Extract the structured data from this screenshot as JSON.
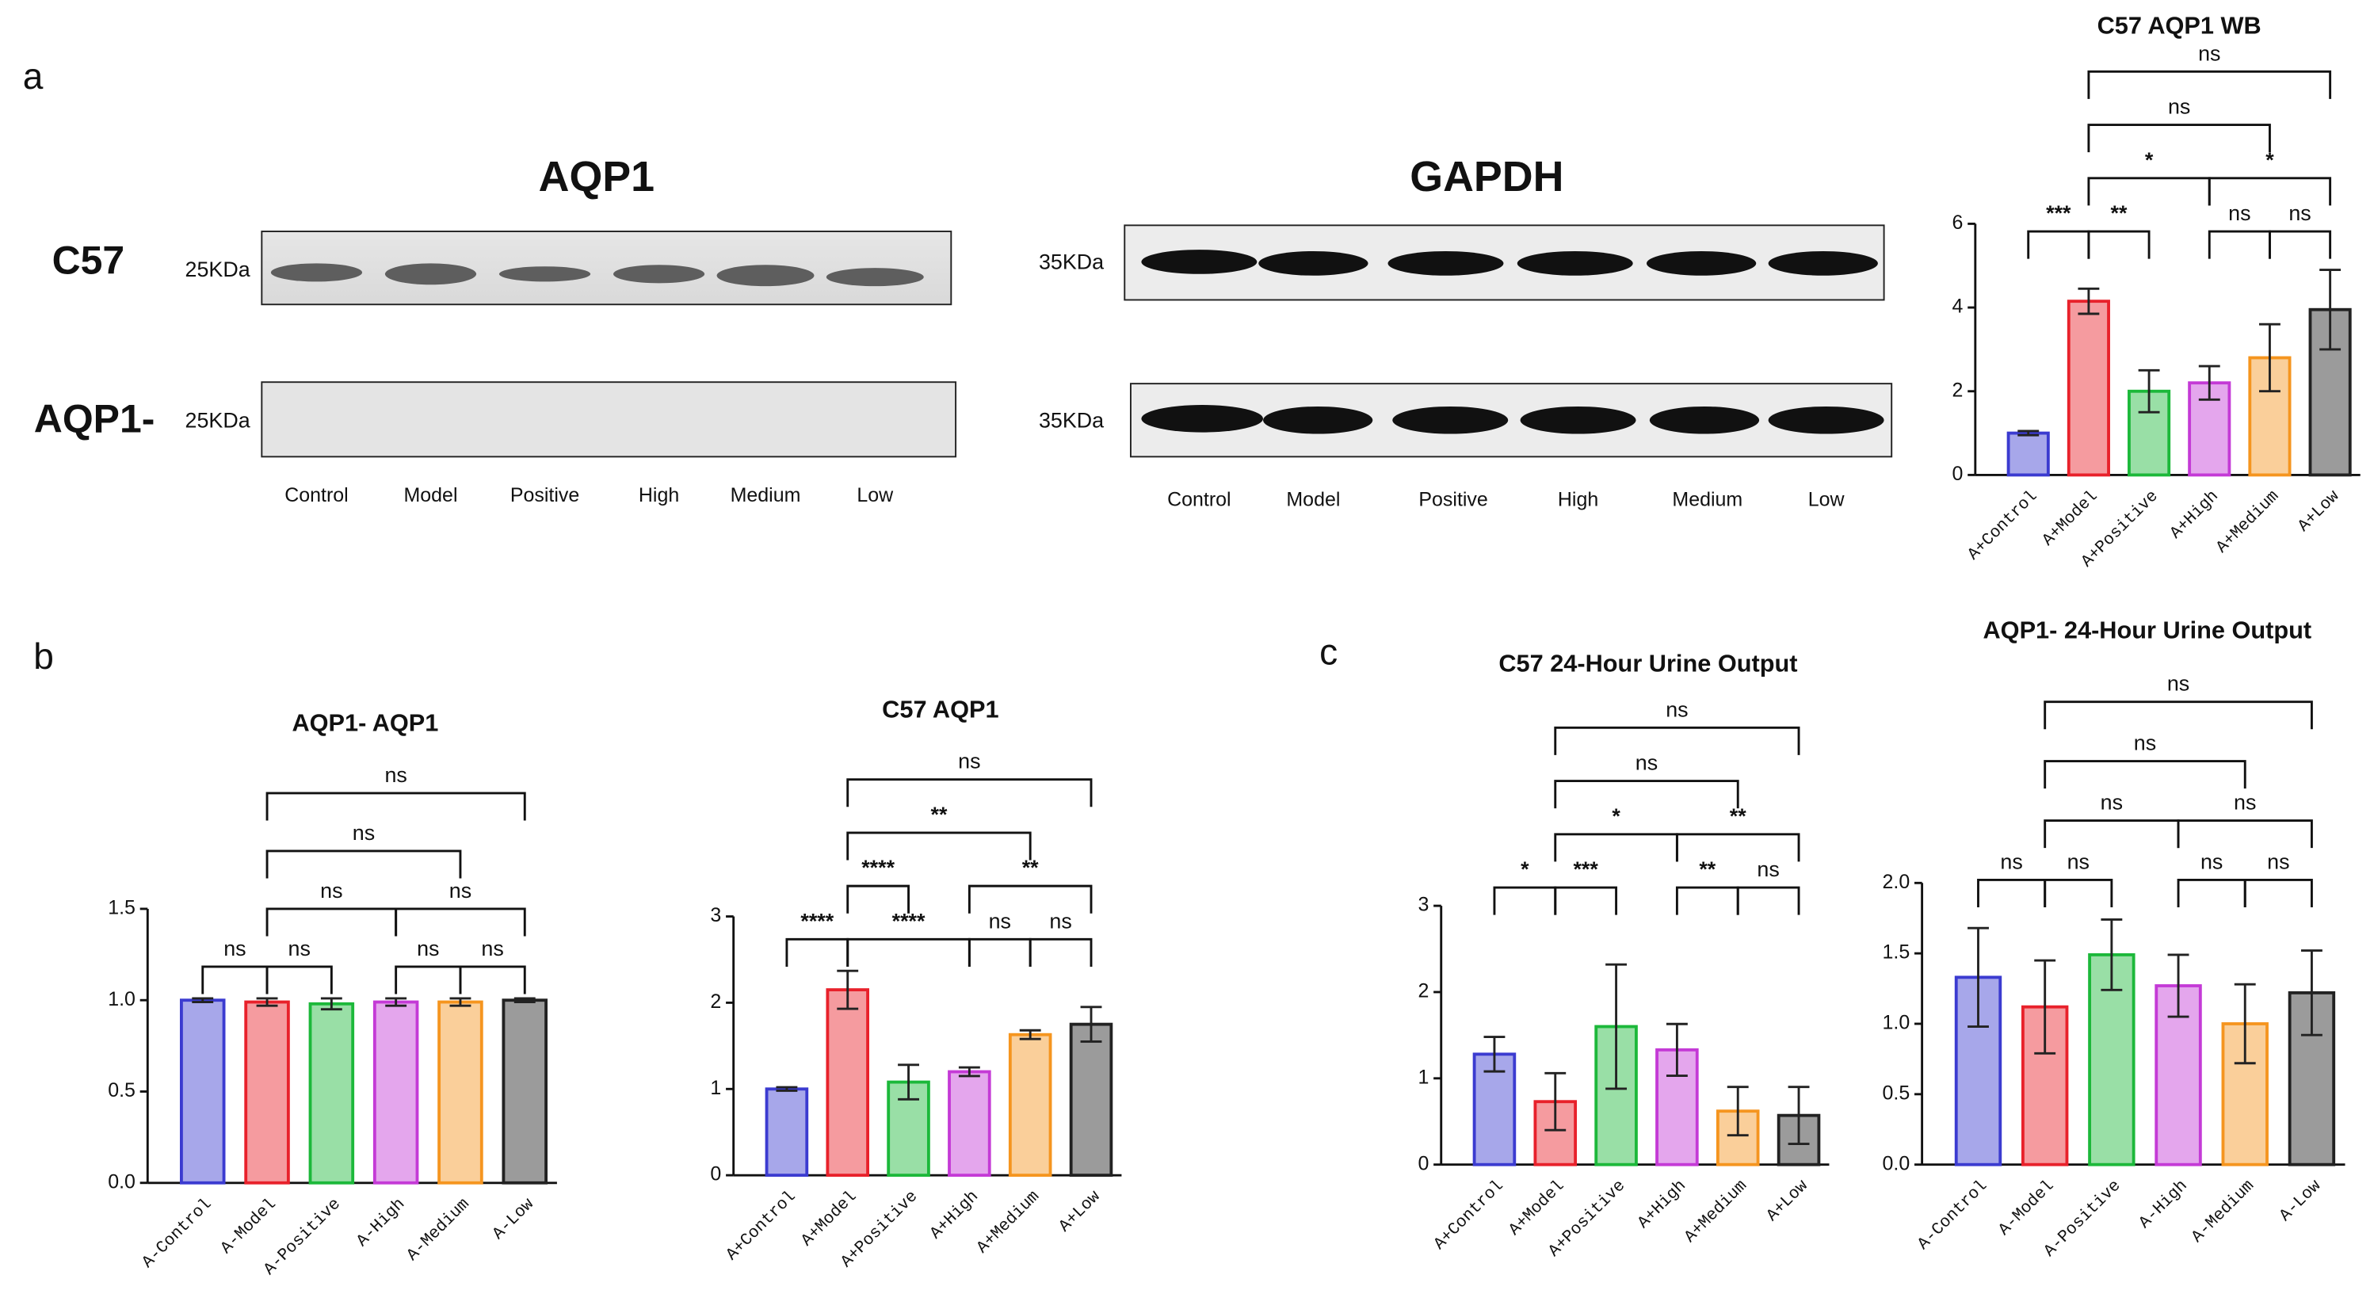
{
  "panels": [
    "a",
    "b",
    "c"
  ],
  "blots": {
    "titles": [
      "AQP1",
      "GAPDH"
    ],
    "rows": [
      "C57",
      "AQP1-"
    ],
    "left_sizes": [
      "25KDa",
      "25KDa"
    ],
    "right_sizes": [
      "35KDa",
      "35KDa"
    ],
    "lanes_left": [
      "Control",
      "Model",
      "Positive",
      "High",
      "Medium",
      "Low"
    ],
    "lanes_right": [
      "Control",
      "Model",
      "Positive",
      "High",
      "Medium",
      "Low"
    ]
  },
  "chart_data": [
    {
      "type": "bar",
      "title": "C57 AQP1 WB",
      "categories": [
        "A+Control",
        "A+Model",
        "A+Positive",
        "A+High",
        "A+Medium",
        "A+Low"
      ],
      "values": [
        1.0,
        4.15,
        2.0,
        2.2,
        2.8,
        3.95
      ],
      "errors": [
        0.05,
        0.3,
        0.5,
        0.4,
        0.8,
        0.95
      ],
      "colors": [
        "#3b3bd0",
        "#e8212b",
        "#1cb83a",
        "#c43ad6",
        "#f5951f",
        "#222222"
      ],
      "ylim": [
        0,
        6
      ],
      "yticks": [
        0,
        2,
        4,
        6
      ],
      "comparisons": [
        {
          "from": 0,
          "to": 1,
          "label": "***"
        },
        {
          "from": 1,
          "to": 2,
          "label": "**"
        },
        {
          "from": 3,
          "to": 4,
          "label": "ns"
        },
        {
          "from": 4,
          "to": 5,
          "label": "ns"
        },
        {
          "from": 1,
          "to": 3,
          "label": "*"
        },
        {
          "from": 3,
          "to": 5,
          "label": "*"
        },
        {
          "from": 1,
          "to": 4,
          "label": "ns"
        },
        {
          "from": 1,
          "to": 5,
          "label": "ns"
        }
      ]
    },
    {
      "type": "bar",
      "title": "AQP1- AQP1",
      "categories": [
        "A-Control",
        "A-Model",
        "A-Positive",
        "A-High",
        "A-Medium",
        "A-Low"
      ],
      "values": [
        1.0,
        0.99,
        0.98,
        0.99,
        0.99,
        1.0
      ],
      "errors": [
        0.01,
        0.02,
        0.03,
        0.02,
        0.02,
        0.01
      ],
      "colors": [
        "#3b3bd0",
        "#e8212b",
        "#1cb83a",
        "#c43ad6",
        "#f5951f",
        "#222222"
      ],
      "ylim": [
        0,
        1.5
      ],
      "yticks": [
        {
          "value": 0,
          "label": "0.0"
        },
        0.5,
        {
          "value": 1,
          "label": "1.0"
        },
        1.5
      ],
      "comparisons": [
        {
          "from": 0,
          "to": 1,
          "label": "ns"
        },
        {
          "from": 1,
          "to": 2,
          "label": "ns"
        },
        {
          "from": 3,
          "to": 4,
          "label": "ns"
        },
        {
          "from": 4,
          "to": 5,
          "label": "ns"
        },
        {
          "from": 1,
          "to": 3,
          "label": "ns"
        },
        {
          "from": 3,
          "to": 5,
          "label": "ns"
        },
        {
          "from": 1,
          "to": 4,
          "label": "ns"
        },
        {
          "from": 1,
          "to": 5,
          "label": "ns"
        }
      ]
    },
    {
      "type": "bar",
      "title": "C57 AQP1",
      "categories": [
        "A+Control",
        "A+Model",
        "A+Positive",
        "A+High",
        "A+Medium",
        "A+Low"
      ],
      "values": [
        1.0,
        2.15,
        1.08,
        1.2,
        1.63,
        1.75
      ],
      "errors": [
        0.02,
        0.22,
        0.2,
        0.05,
        0.05,
        0.2
      ],
      "colors": [
        "#3b3bd0",
        "#e8212b",
        "#1cb83a",
        "#c43ad6",
        "#f5951f",
        "#222222"
      ],
      "ylim": [
        0,
        3
      ],
      "yticks": [
        0,
        1,
        2,
        3
      ],
      "comparisons": [
        {
          "from": 0,
          "to": 1,
          "label": "****"
        },
        {
          "from": 1,
          "to": 3,
          "label": "****"
        },
        {
          "from": 3,
          "to": 4,
          "label": "ns"
        },
        {
          "from": 4,
          "to": 5,
          "label": "ns"
        },
        {
          "from": 1,
          "to": 2,
          "label": "****"
        },
        {
          "from": 3,
          "to": 5,
          "label": "**"
        },
        {
          "from": 1,
          "to": 4,
          "label": "**"
        },
        {
          "from": 1,
          "to": 5,
          "label": "ns"
        }
      ]
    },
    {
      "type": "bar",
      "title": "C57 24-Hour Urine Output",
      "categories": [
        "A+Control",
        "A+Model",
        "A+Positive",
        "A+High",
        "A+Medium",
        "A+Low"
      ],
      "values": [
        1.28,
        0.73,
        1.6,
        1.33,
        0.62,
        0.57
      ],
      "errors": [
        0.2,
        0.33,
        0.72,
        0.3,
        0.28,
        0.33
      ],
      "colors": [
        "#3b3bd0",
        "#e8212b",
        "#1cb83a",
        "#c43ad6",
        "#f5951f",
        "#222222"
      ],
      "ylim": [
        0,
        3
      ],
      "yticks": [
        0,
        1,
        2,
        3
      ],
      "comparisons": [
        {
          "from": 0,
          "to": 1,
          "label": "*"
        },
        {
          "from": 1,
          "to": 2,
          "label": "***"
        },
        {
          "from": 3,
          "to": 4,
          "label": "**"
        },
        {
          "from": 4,
          "to": 5,
          "label": "ns"
        },
        {
          "from": 1,
          "to": 3,
          "label": "*"
        },
        {
          "from": 3,
          "to": 5,
          "label": "**"
        },
        {
          "from": 1,
          "to": 4,
          "label": "ns"
        },
        {
          "from": 1,
          "to": 5,
          "label": "ns"
        }
      ]
    },
    {
      "type": "bar",
      "title": "AQP1- 24-Hour Urine Output",
      "categories": [
        "A-Control",
        "A-Model",
        "A-Positive",
        "A-High",
        "A-Medium",
        "A-Low"
      ],
      "values": [
        1.33,
        1.12,
        1.49,
        1.27,
        1.0,
        1.22
      ],
      "errors": [
        0.35,
        0.33,
        0.25,
        0.22,
        0.28,
        0.3
      ],
      "colors": [
        "#3b3bd0",
        "#e8212b",
        "#1cb83a",
        "#c43ad6",
        "#f5951f",
        "#222222"
      ],
      "ylim": [
        0,
        2
      ],
      "yticks": [
        {
          "value": 0,
          "label": "0.0"
        },
        0.5,
        {
          "value": 1,
          "label": "1.0"
        },
        1.5,
        {
          "value": 2,
          "label": "2.0"
        }
      ],
      "comparisons": [
        {
          "from": 0,
          "to": 1,
          "label": "ns"
        },
        {
          "from": 1,
          "to": 2,
          "label": "ns"
        },
        {
          "from": 3,
          "to": 4,
          "label": "ns"
        },
        {
          "from": 4,
          "to": 5,
          "label": "ns"
        },
        {
          "from": 1,
          "to": 3,
          "label": "ns"
        },
        {
          "from": 3,
          "to": 5,
          "label": "ns"
        },
        {
          "from": 1,
          "to": 4,
          "label": "ns"
        },
        {
          "from": 1,
          "to": 5,
          "label": "ns"
        }
      ]
    }
  ]
}
